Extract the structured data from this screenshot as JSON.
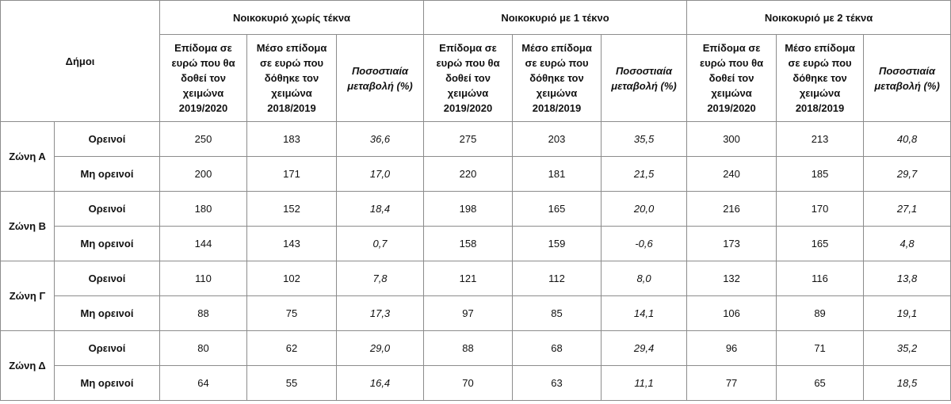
{
  "header": {
    "municipalities": "Δήμοι",
    "groups": [
      "Νοικοκυριό χωρίς τέκνα",
      "Νοικοκυριό με 1 τέκνο",
      "Νοικοκυριό με 2 τέκνα"
    ],
    "subheaders": [
      [
        "Επίδομα σε",
        "ευρώ που θα",
        "δοθεί τον",
        "χειμώνα",
        "2019/2020"
      ],
      [
        "Μέσο επίδομα",
        "σε ευρώ που",
        "δόθηκε τον",
        "χειμώνα",
        "2018/2019"
      ],
      [
        "Ποσοστιαία",
        "μεταβολή (%)"
      ]
    ]
  },
  "rows": [
    {
      "zone": "Ζώνη Α",
      "type": "Ορεινοί",
      "values": [
        "250",
        "183",
        "36,6",
        "275",
        "203",
        "35,5",
        "300",
        "213",
        "40,8"
      ]
    },
    {
      "zone": "Ζώνη Α",
      "type": "Μη ορεινοί",
      "values": [
        "200",
        "171",
        "17,0",
        "220",
        "181",
        "21,5",
        "240",
        "185",
        "29,7"
      ]
    },
    {
      "zone": "Ζώνη Β",
      "type": "Ορεινοί",
      "values": [
        "180",
        "152",
        "18,4",
        "198",
        "165",
        "20,0",
        "216",
        "170",
        "27,1"
      ]
    },
    {
      "zone": "Ζώνη Β",
      "type": "Μη ορεινοί",
      "values": [
        "144",
        "143",
        "0,7",
        "158",
        "159",
        "-0,6",
        "173",
        "165",
        "4,8"
      ]
    },
    {
      "zone": "Ζώνη Γ",
      "type": "Ορεινοί",
      "values": [
        "110",
        "102",
        "7,8",
        "121",
        "112",
        "8,0",
        "132",
        "116",
        "13,8"
      ]
    },
    {
      "zone": "Ζώνη Γ",
      "type": "Μη ορεινοί",
      "values": [
        "88",
        "75",
        "17,3",
        "97",
        "85",
        "14,1",
        "106",
        "89",
        "19,1"
      ]
    },
    {
      "zone": "Ζώνη Δ",
      "type": "Ορεινοί",
      "values": [
        "80",
        "62",
        "29,0",
        "88",
        "68",
        "29,4",
        "96",
        "71",
        "35,2"
      ]
    },
    {
      "zone": "Ζώνη Δ",
      "type": "Μη ορεινοί",
      "values": [
        "64",
        "55",
        "16,4",
        "70",
        "63",
        "11,1",
        "77",
        "65",
        "18,5"
      ]
    }
  ]
}
